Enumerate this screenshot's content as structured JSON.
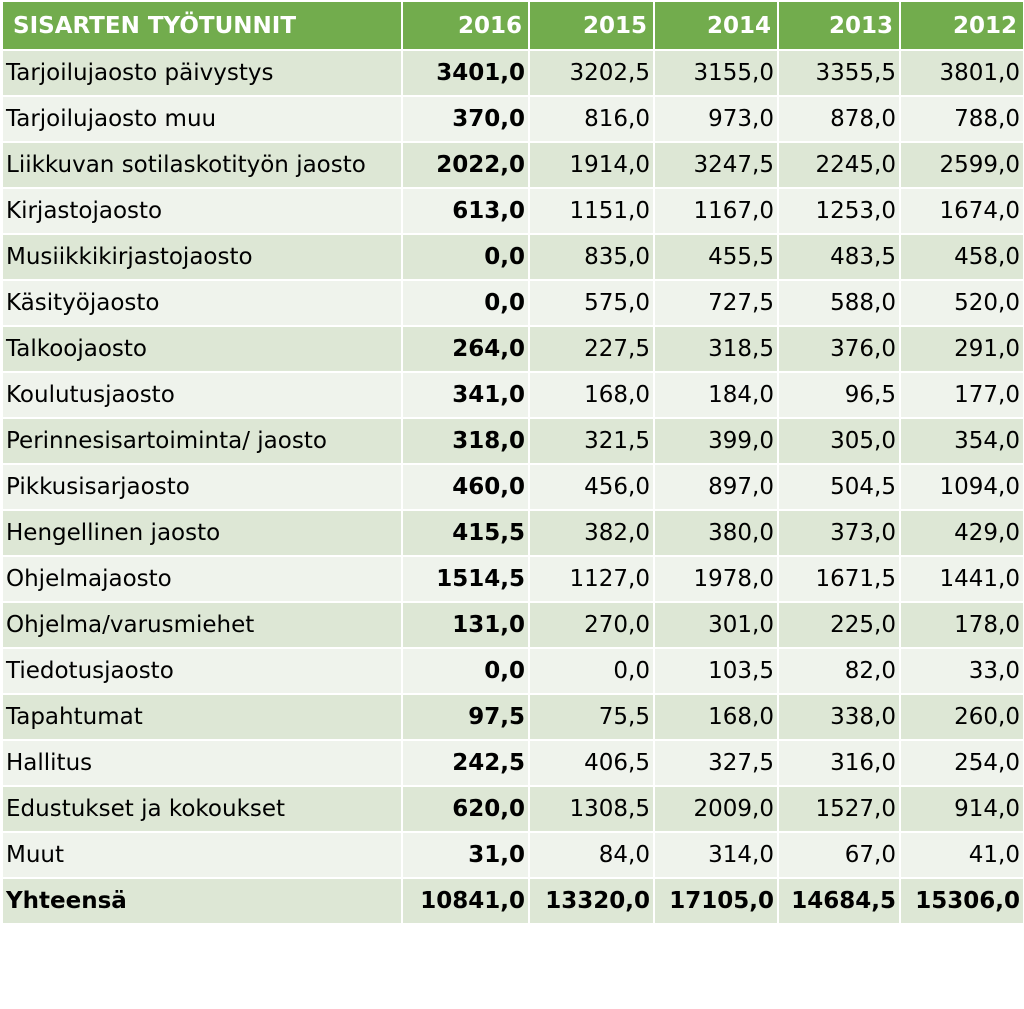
{
  "chart_data": {
    "type": "table",
    "columns": [
      "SISARTEN TYÖTUNNIT",
      "2016",
      "2015",
      "2014",
      "2013",
      "2012"
    ],
    "rows": [
      {
        "label": "Tarjoilujaosto päivystys",
        "values": [
          "3401,0",
          "3202,5",
          "3155,0",
          "3355,5",
          "3801,0"
        ]
      },
      {
        "label": "Tarjoilujaosto muu",
        "values": [
          "370,0",
          "816,0",
          "973,0",
          "878,0",
          "788,0"
        ]
      },
      {
        "label": "Liikkuvan sotilaskotityön jaosto",
        "values": [
          "2022,0",
          "1914,0",
          "3247,5",
          "2245,0",
          "2599,0"
        ]
      },
      {
        "label": "Kirjastojaosto",
        "values": [
          "613,0",
          "1151,0",
          "1167,0",
          "1253,0",
          "1674,0"
        ]
      },
      {
        "label": "Musiikkikirjastojaosto",
        "values": [
          "0,0",
          "835,0",
          "455,5",
          "483,5",
          "458,0"
        ]
      },
      {
        "label": "Käsityöjaosto",
        "values": [
          "0,0",
          "575,0",
          "727,5",
          "588,0",
          "520,0"
        ]
      },
      {
        "label": "Talkoojaosto",
        "values": [
          "264,0",
          "227,5",
          "318,5",
          "376,0",
          "291,0"
        ]
      },
      {
        "label": "Koulutusjaosto",
        "values": [
          "341,0",
          "168,0",
          "184,0",
          "96,5",
          "177,0"
        ]
      },
      {
        "label": "Perinnesisartoiminta/ jaosto",
        "values": [
          "318,0",
          "321,5",
          "399,0",
          "305,0",
          "354,0"
        ]
      },
      {
        "label": "Pikkusisarjaosto",
        "values": [
          "460,0",
          "456,0",
          "897,0",
          "504,5",
          "1094,0"
        ]
      },
      {
        "label": "Hengellinen jaosto",
        "values": [
          "415,5",
          "382,0",
          "380,0",
          "373,0",
          "429,0"
        ]
      },
      {
        "label": "Ohjelmajaosto",
        "values": [
          "1514,5",
          "1127,0",
          "1978,0",
          "1671,5",
          "1441,0"
        ]
      },
      {
        "label": "Ohjelma/varusmiehet",
        "values": [
          "131,0",
          "270,0",
          "301,0",
          "225,0",
          "178,0"
        ]
      },
      {
        "label": "Tiedotusjaosto",
        "values": [
          "0,0",
          "0,0",
          "103,5",
          "82,0",
          "33,0"
        ]
      },
      {
        "label": "Tapahtumat",
        "values": [
          "97,5",
          "75,5",
          "168,0",
          "338,0",
          "260,0"
        ]
      },
      {
        "label": "Hallitus",
        "values": [
          "242,5",
          "406,5",
          "327,5",
          "316,0",
          "254,0"
        ]
      },
      {
        "label": "Edustukset ja kokoukset",
        "values": [
          "620,0",
          "1308,5",
          "2009,0",
          "1527,0",
          "914,0"
        ]
      },
      {
        "label": "Muut",
        "values": [
          "31,0",
          "84,0",
          "314,0",
          "67,0",
          "41,0"
        ]
      }
    ],
    "total": {
      "label": "Yhteensä",
      "values": [
        "10841,0",
        "13320,0",
        "17105,0",
        "14684,5",
        "15306,0"
      ]
    }
  },
  "colors": {
    "header_bg": "#72ac4d",
    "header_text": "#ffffff",
    "row_dark": "#dde7d5",
    "row_light": "#eff3ec"
  }
}
